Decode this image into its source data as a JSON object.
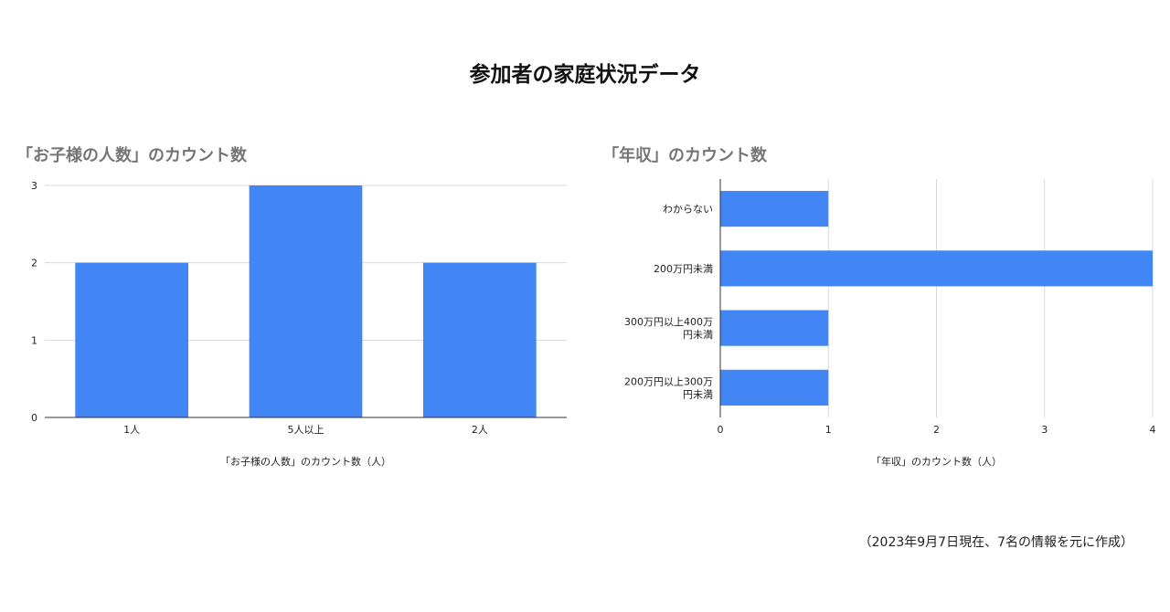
{
  "page": {
    "title": "参加者の家庭状況データ",
    "footnote": "（2023年9月7日現在、7名の情報を元に作成）"
  },
  "colors": {
    "bar": "#4285f4",
    "grid": "#d9d9d9",
    "axis": "#333333"
  },
  "chart_data": [
    {
      "type": "bar",
      "title": "「お子様の人数」のカウント数",
      "xlabel": "「お子様の人数」のカウント数（人）",
      "ylabel": "",
      "categories": [
        "1人",
        "5人以上",
        "2人"
      ],
      "values": [
        2,
        3,
        2
      ],
      "yticks": [
        "0",
        "1",
        "2",
        "3"
      ],
      "ylim": [
        0,
        3
      ],
      "grid": true,
      "legend": "none"
    },
    {
      "type": "bar",
      "orientation": "horizontal",
      "title": "「年収」のカウント数",
      "xlabel": "「年収」のカウント数（人）",
      "ylabel": "",
      "categories": [
        [
          "わからない"
        ],
        [
          "200万円未満"
        ],
        [
          "300万円以上400万",
          "円未満"
        ],
        [
          "200万円以上300万",
          "円未満"
        ]
      ],
      "values": [
        1,
        4,
        1,
        1
      ],
      "xticks": [
        "0",
        "1",
        "2",
        "3",
        "4"
      ],
      "xlim": [
        0,
        4
      ],
      "grid": true,
      "legend": "none"
    }
  ]
}
